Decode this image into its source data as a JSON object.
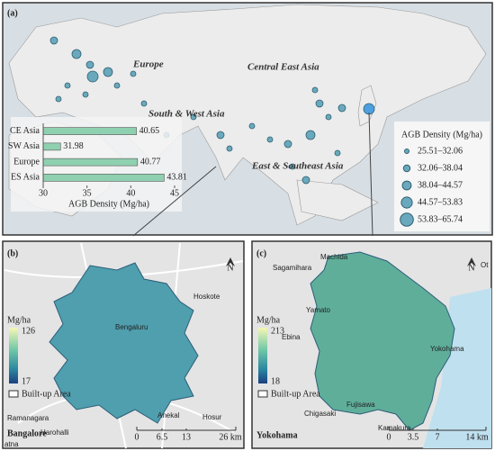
{
  "panel_a": {
    "label": "(a)",
    "regions": [
      "Europe",
      "Central East Asia",
      "South & West Asia",
      "East & Southeast Asia"
    ],
    "chart_data": {
      "type": "bar",
      "orientation": "horizontal",
      "categories": [
        "CE Asia",
        "SW Asia",
        "Europe",
        "ES Asia"
      ],
      "values": [
        40.65,
        31.98,
        40.77,
        43.81
      ],
      "color": "#8fd0b0",
      "xlim": [
        30,
        45
      ],
      "xticks": [
        30,
        35,
        40,
        45
      ],
      "x_label": "AGB Density (Mg/ha)"
    },
    "legend": {
      "title": "AGB Density (Mg/ha)",
      "items": [
        "25.51–32.06",
        "32.06–38.04",
        "38.04–44.57",
        "44.57–53.83",
        "53.83–65.74"
      ]
    }
  },
  "panel_b": {
    "label": "(b)",
    "city": "Bangalore",
    "places": [
      "Bengaluru",
      "Hoskote",
      "Ramanagara",
      "Harohalli",
      "Anekal",
      "Hosur",
      "atna"
    ],
    "colorbar": {
      "unit": "Mg/ha",
      "max": "126",
      "min": "17"
    },
    "built_up": "Built-up Area",
    "scale": [
      "0",
      "6.5",
      "13",
      "26 km"
    ],
    "north": "N"
  },
  "panel_c": {
    "label": "(c)",
    "city": "Yokohama",
    "places": [
      "Machida",
      "Sagamihara",
      "Yamato",
      "Ebina",
      "Yokohama",
      "Fujisawa",
      "Chigasaki",
      "Kamakura",
      "Ot"
    ],
    "colorbar": {
      "unit": "Mg/ha",
      "max": "213",
      "min": "18"
    },
    "built_up": "Built-up Area",
    "scale": [
      "0",
      "3.5",
      "7",
      "14 km"
    ],
    "north": "N"
  }
}
